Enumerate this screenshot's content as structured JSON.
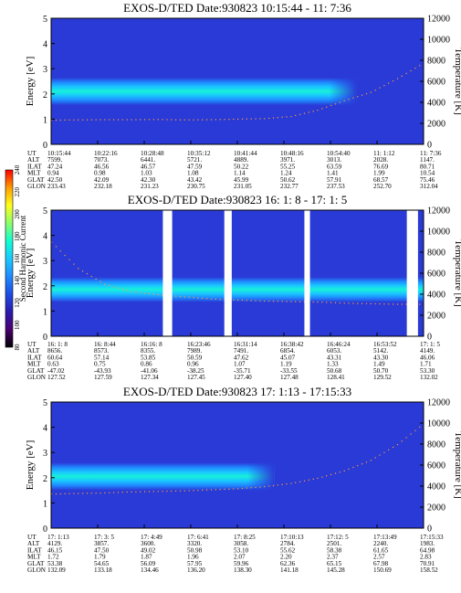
{
  "colorbar": {
    "label": "Second Harmonic Current",
    "ticks": [
      "80",
      "100",
      "120",
      "140",
      "160",
      "180",
      "200",
      "220",
      "240"
    ],
    "stops": [
      "#000000",
      "#4b006f",
      "#2a1bb0",
      "#1c4de6",
      "#1f8bff",
      "#19c9ff",
      "#11ffd0",
      "#8cff6a",
      "#ffff1c",
      "#ff9d00",
      "#ff0000"
    ]
  },
  "chart_data": [
    {
      "type": "heatmap",
      "title": "EXOS-D/TED   Date:930823  10:15:44 - 11: 7:36",
      "ylabel": "Energy [eV]",
      "y2label": "Temperature [K]",
      "ylim": [
        0,
        5
      ],
      "y2lim": [
        0,
        12000
      ],
      "yticks": [
        "0",
        "1",
        "2",
        "3",
        "4",
        "5"
      ],
      "y2ticks": [
        "0",
        "2000",
        "4000",
        "6000",
        "8000",
        "10000",
        "12000"
      ],
      "band": {
        "center_eV": 2.1,
        "width_eV": 0.55,
        "fade_after": 0.82
      },
      "temperature_curve": {
        "values_K": [
          2350,
          2380,
          2400,
          2400,
          2420,
          2380,
          2400,
          2450,
          2500,
          2700,
          3300,
          4200,
          5000,
          6300,
          7800
        ]
      },
      "gaps": [],
      "ephemeris": {
        "rows": [
          {
            "label": "UT",
            "values": [
              "10:15:44",
              "10:22:16",
              "10:28:48",
              "10:35:12",
              "10:41:44",
              "10:48:16",
              "10:54:40",
              "11: 1:12",
              "11: 7:36"
            ]
          },
          {
            "label": "ALT",
            "values": [
              "7599.",
              "7073.",
              "6441.",
              "5721.",
              "4889.",
              "3971.",
              "3013.",
              "2028.",
              "1147."
            ]
          },
          {
            "label": "ILAT",
            "values": [
              "47.24",
              "46.56",
              "46.57",
              "47.59",
              "50.22",
              "55.25",
              "63.59",
              "76.69",
              "80.71"
            ]
          },
          {
            "label": "MLT",
            "values": [
              "0.94",
              "0.98",
              "1.03",
              "1.08",
              "1.14",
              "1.24",
              "1.41",
              "1.99",
              "10.54"
            ]
          },
          {
            "label": "GLAT",
            "values": [
              "42.50",
              "42.09",
              "42.30",
              "43.42",
              "45.99",
              "50.62",
              "57.91",
              "68.57",
              "75.46"
            ]
          },
          {
            "label": "GLON",
            "values": [
              "233.43",
              "232.18",
              "231.23",
              "230.75",
              "231.05",
              "232.77",
              "237.53",
              "252.70",
              "312.04"
            ]
          }
        ]
      }
    },
    {
      "type": "heatmap",
      "title": "EXOS-D/TED   Date:930823   16: 1: 8 - 17: 1: 5",
      "ylabel": "Energy [eV]",
      "y2label": "Temperature [K]",
      "ylim": [
        0,
        5
      ],
      "y2lim": [
        0,
        12000
      ],
      "yticks": [
        "0",
        "1",
        "2",
        "3",
        "4",
        "5"
      ],
      "y2ticks": [
        "0",
        "2000",
        "4000",
        "6000",
        "8000",
        "10000",
        "12000"
      ],
      "band": {
        "center_eV": 1.85,
        "width_eV": 0.5,
        "fade_after": 1.0
      },
      "temperature_curve": {
        "values_K": [
          9000,
          6500,
          5000,
          4300,
          4000,
          3800,
          3600,
          3500,
          3400,
          3350,
          3300,
          3200,
          3150,
          3100,
          3100
        ]
      },
      "gaps": [
        [
          0.3,
          0.325
        ],
        [
          0.465,
          0.485
        ],
        [
          0.68,
          0.695
        ],
        [
          0.955,
          0.985
        ]
      ],
      "ephemeris": {
        "rows": [
          {
            "label": "UT",
            "values": [
              "16: 1: 8",
              "16: 8:44",
              "16:16: 8",
              "16:23:46",
              "16:31:14",
              "16:38:42",
              "16:46:24",
              "16:53:52",
              "17: 1: 5"
            ]
          },
          {
            "label": "ALT",
            "values": [
              "8656.",
              "8573.",
              "8355.",
              "7989.",
              "7491.",
              "6854.",
              "6053.",
              "5142.",
              "4149."
            ]
          },
          {
            "label": "ILAT",
            "values": [
              "60.64",
              "57.14",
              "53.85",
              "50.59",
              "47.62",
              "45.07",
              "43.31",
              "43.30",
              "46.06"
            ]
          },
          {
            "label": "MLT",
            "values": [
              "0.63",
              "0.75",
              "0.86",
              "0.96",
              "1.07",
              "1.19",
              "1.33",
              "1.49",
              "1.71"
            ]
          },
          {
            "label": "GLAT",
            "values": [
              "-47.02",
              "-43.93",
              "-41.06",
              "-38.25",
              "-35.71",
              "-33.55",
              "50.68",
              "50.70",
              "53.30"
            ]
          },
          {
            "label": "GLON",
            "values": [
              "127.52",
              "127.59",
              "127.34",
              "127.45",
              "127.40",
              "127.48",
              "128.41",
              "129.52",
              "132.02"
            ]
          }
        ]
      }
    },
    {
      "type": "heatmap",
      "title": "EXOS-D/TED   Date:930823  17: 1:13 - 17:15:33",
      "ylabel": "Energy [eV]",
      "y2label": "Temperature [K]",
      "ylim": [
        0,
        5
      ],
      "y2lim": [
        0,
        12000
      ],
      "yticks": [
        "0",
        "1",
        "2",
        "3",
        "4",
        "5"
      ],
      "y2ticks": [
        "0",
        "2000",
        "4000",
        "6000",
        "8000",
        "10000",
        "12000"
      ],
      "band": {
        "center_eV": 2.05,
        "width_eV": 0.55,
        "fade_after": 0.6
      },
      "temperature_curve": {
        "values_K": [
          3300,
          3350,
          3400,
          3500,
          3550,
          3600,
          3700,
          3800,
          4000,
          4300,
          4800,
          5500,
          6500,
          8000,
          10000
        ]
      },
      "gaps": [],
      "ephemeris": {
        "rows": [
          {
            "label": "UT",
            "values": [
              "17: 1:13",
              "17: 3: 5",
              "17: 4:49",
              "17: 6:41",
              "17: 8:25",
              "17:10:13",
              "17:12: 5",
              "17:13:49",
              "17:15:33"
            ]
          },
          {
            "label": "ALT",
            "values": [
              "4129.",
              "3857.",
              "3600.",
              "3320.",
              "3058.",
              "2784.",
              "2501.",
              "2240.",
              "1983."
            ]
          },
          {
            "label": "ILAT",
            "values": [
              "46.15",
              "47.50",
              "49.02",
              "50.98",
              "53.10",
              "55.62",
              "58.38",
              "61.65",
              "64.98"
            ]
          },
          {
            "label": "MLT",
            "values": [
              "1.72",
              "1.79",
              "1.87",
              "1.96",
              "2.07",
              "2.20",
              "2.37",
              "2.57",
              "2.83"
            ]
          },
          {
            "label": "GLAT",
            "values": [
              "53.38",
              "54.65",
              "56.09",
              "57.95",
              "59.96",
              "62.36",
              "65.15",
              "67.98",
              "70.91"
            ]
          },
          {
            "label": "GLON",
            "values": [
              "132.09",
              "133.18",
              "134.46",
              "136.20",
              "138.30",
              "141.18",
              "145.28",
              "150.69",
              "158.52"
            ]
          }
        ]
      }
    }
  ]
}
